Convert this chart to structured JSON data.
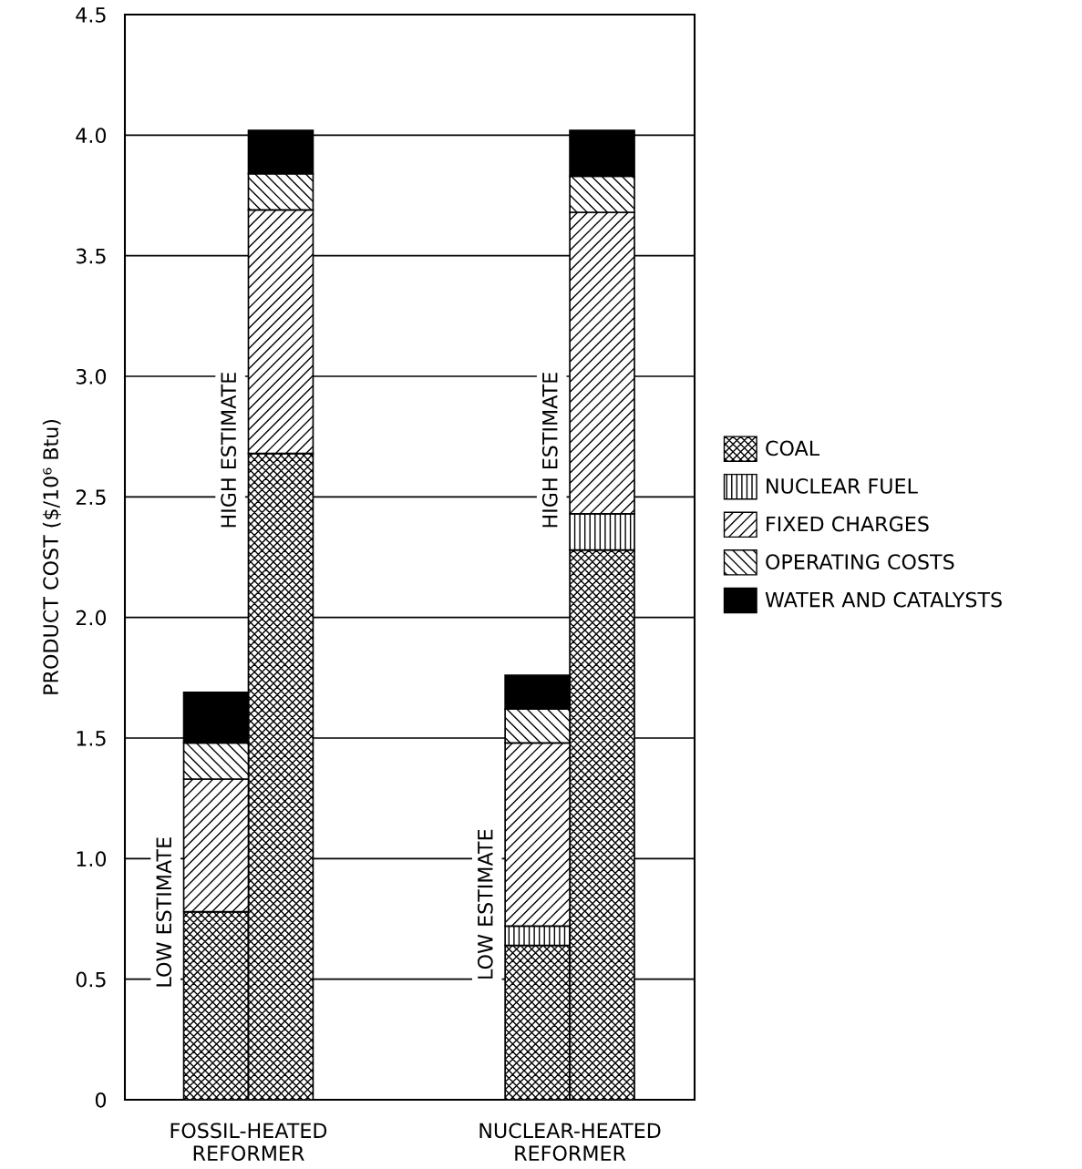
{
  "chart_data": {
    "type": "bar",
    "stacked": true,
    "ylabel": "PRODUCT COST ($/10⁶ Btu)",
    "categories": [
      null,
      null,
      null,
      null
    ],
    "annotations": [
      "LOW ESTIMATE",
      "HIGH ESTIMATE",
      "LOW ESTIMATE",
      "HIGH ESTIMATE",
      "FOSSIL-HEATED\nREFORMER",
      "NUCLEAR-HEATED\nREFORMER"
    ],
    "series": [
      {
        "name": "COAL",
        "color": "#000000",
        "values": [
          0.78,
          2.68,
          0.64,
          2.28
        ]
      },
      {
        "name": "NUCLEAR FUEL",
        "color": "#000000",
        "values": [
          0,
          0,
          0.08,
          0.15
        ]
      },
      {
        "name": "FIXED CHARGES",
        "color": "#000000",
        "values": [
          0.55,
          1.01,
          0.76,
          1.25
        ]
      },
      {
        "name": "OPERATING COSTS",
        "color": "#000000",
        "values": [
          0.15,
          0.15,
          0.14,
          0.15
        ]
      },
      {
        "name": "WATER AND CATALYSTS",
        "color": "#000000",
        "values": [
          0.21,
          0.18,
          0.14,
          0.19
        ]
      }
    ],
    "ylim": [
      0,
      4.5
    ],
    "yticks": [
      0,
      0.5,
      {
        "value": 1,
        "label": "1.0"
      },
      1.5,
      {
        "value": 2,
        "label": "2.0"
      },
      2.5,
      {
        "value": 3,
        "label": "3.0"
      },
      3.5,
      {
        "value": 4,
        "label": "4.0"
      },
      4.5
    ],
    "grid": "y",
    "legend": "right"
  }
}
